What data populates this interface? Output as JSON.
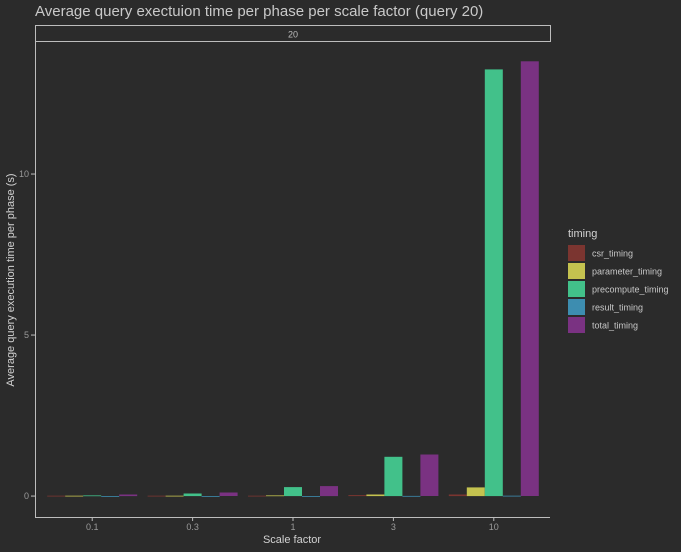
{
  "chart_data": {
    "type": "bar",
    "title": "Average query exectuion time per phase per scale factor (query 20)",
    "facet_label": "20",
    "xlabel": "Scale factor",
    "ylabel": "Average query execution time per phase (s)",
    "categories": [
      "0.1",
      "0.3",
      "1",
      "3",
      "10"
    ],
    "ylim": [
      -0.65,
      14.1
    ],
    "yticks": [
      0,
      5,
      10
    ],
    "grid": false,
    "legend": {
      "title": "timing",
      "position": "right"
    },
    "series": [
      {
        "name": "csr_timing",
        "color": "#7b3530",
        "values": [
          0.01,
          0.01,
          0.01,
          0.03,
          0.05
        ]
      },
      {
        "name": "parameter_timing",
        "color": "#c4c24f",
        "values": [
          0.01,
          0.01,
          0.02,
          0.05,
          0.27
        ]
      },
      {
        "name": "precompute_timing",
        "color": "#42c18a",
        "values": [
          0.02,
          0.08,
          0.28,
          1.22,
          13.25
        ]
      },
      {
        "name": "result_timing",
        "color": "#3d8db0",
        "values": [
          0.003,
          0.003,
          0.003,
          0.005,
          0.01
        ]
      },
      {
        "name": "total_timing",
        "color": "#7a3282",
        "values": [
          0.05,
          0.11,
          0.31,
          1.29,
          13.5
        ]
      }
    ]
  }
}
